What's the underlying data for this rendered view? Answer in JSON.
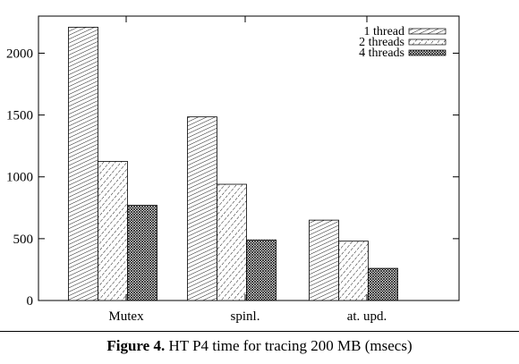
{
  "chart_data": {
    "type": "bar",
    "categories": [
      "Mutex",
      "spinl.",
      "at. upd."
    ],
    "series": [
      {
        "name": "1 thread",
        "values": [
          2210,
          1485,
          650
        ]
      },
      {
        "name": "2 threads",
        "values": [
          1125,
          940,
          480
        ]
      },
      {
        "name": "4 threads",
        "values": [
          770,
          490,
          260
        ]
      }
    ],
    "ylim": [
      0,
      2300
    ],
    "yticks": [
      0,
      500,
      1000,
      1500,
      2000
    ],
    "legend_position": "top-right",
    "grid": false
  },
  "caption": {
    "label": "Figure 4.",
    "text": "HT P4 time for tracing 200 MB (msecs)"
  }
}
